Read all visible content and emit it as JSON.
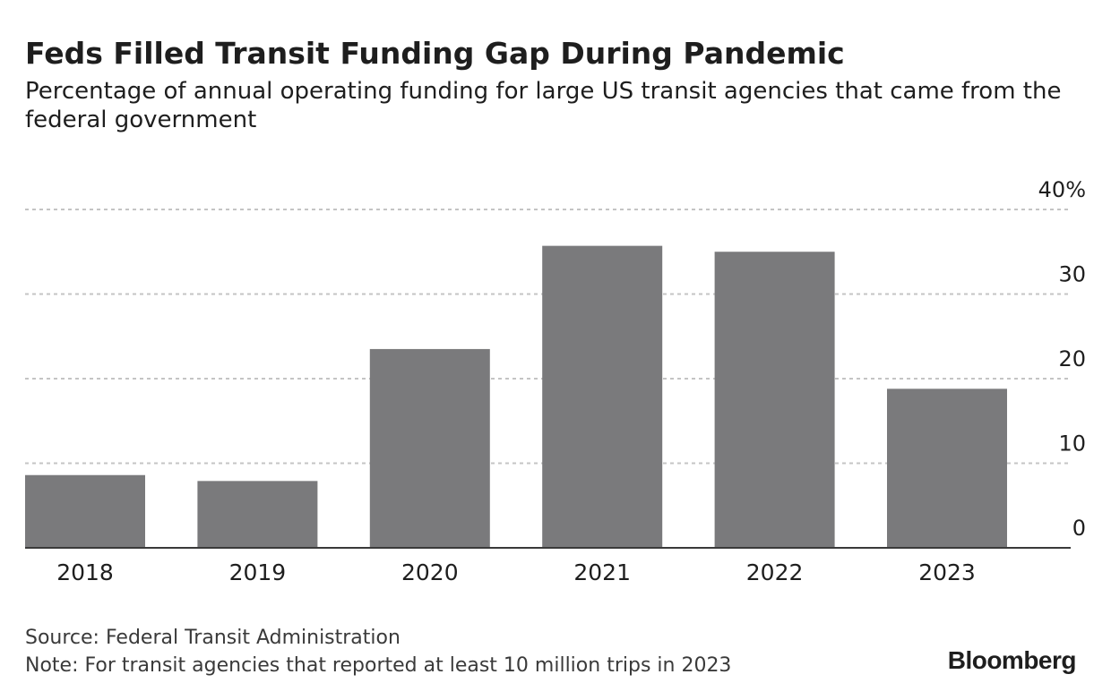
{
  "header": {
    "title": "Feds Filled Transit Funding Gap During Pandemic",
    "subtitle": "Percentage of annual operating funding for large US transit agencies that came from the federal government"
  },
  "footer": {
    "source": "Source: Federal Transit Administration",
    "note": "Note: For transit agencies that reported at least 10 million trips in 2023",
    "brand": "Bloomberg"
  },
  "colors": {
    "bar": "#7a7a7c",
    "grid": "#c4c4c4",
    "axis": "#3a3a3a",
    "text": "#1e1e1e"
  },
  "chart_data": {
    "type": "bar",
    "title": "Feds Filled Transit Funding Gap During Pandemic",
    "subtitle": "Percentage of annual operating funding for large US transit agencies that came from the federal government",
    "xlabel": "",
    "ylabel": "",
    "categories": [
      "2018",
      "2019",
      "2020",
      "2021",
      "2022",
      "2023"
    ],
    "values": [
      8.6,
      7.9,
      23.5,
      35.7,
      35.0,
      18.8
    ],
    "ylim": [
      0,
      40
    ],
    "yticks": [
      0,
      10,
      20,
      30,
      40
    ],
    "ytick_labels": [
      "0",
      "10",
      "20",
      "30",
      "40%"
    ],
    "y_axis_side": "right",
    "grid": true
  }
}
